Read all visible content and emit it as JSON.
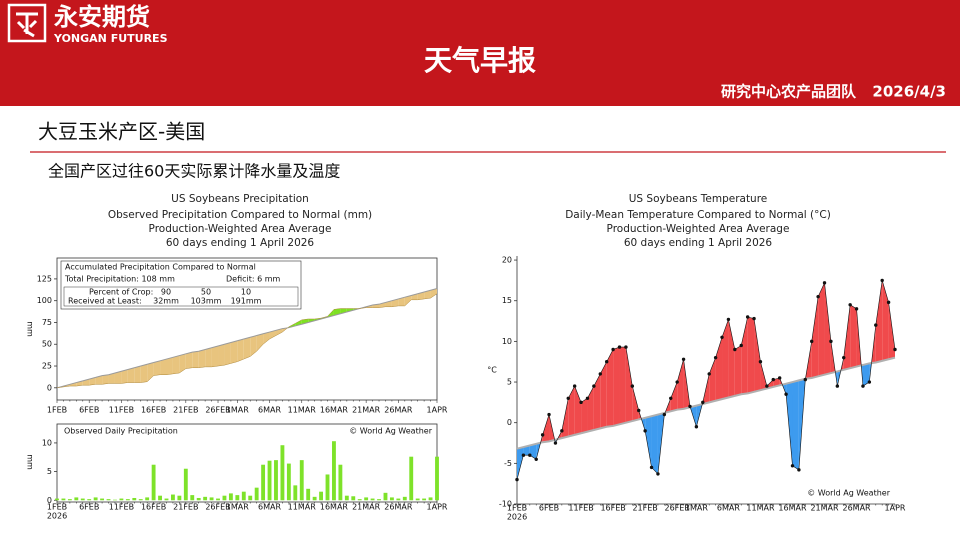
{
  "header": {
    "logo_cn": "永安期货",
    "logo_en": "YONGAN FUTURES",
    "title": "天气早报",
    "team": "研究中心农产品团队",
    "date": "2026/4/3"
  },
  "section": {
    "title": "大豆玉米产区-美国",
    "subtitle": "全国产区过往60天实际累计降水量及温度"
  },
  "chart_data": [
    {
      "type": "area",
      "title": "US Soybeans Precipitation",
      "subtitles": [
        "Observed Precipitation Compared to Normal (mm)",
        "Production-Weighted Area Average",
        "60 days ending 1 April 2026"
      ],
      "y_label": "mm",
      "annotations": {
        "box_title": "Accumulated Precipitation Compared to Normal",
        "total": "Total Precipitation:  108 mm",
        "deficit": "Deficit:  6 mm",
        "crop_label": "Percent of Crop:",
        "crop": [
          "90",
          "50",
          "10"
        ],
        "received_label": "Received at Least:",
        "received": [
          "32mm",
          "103mm",
          "191mm"
        ]
      },
      "categories": [
        "1FEB",
        null,
        null,
        null,
        null,
        "6FEB",
        null,
        null,
        null,
        null,
        "11FEB",
        null,
        null,
        null,
        null,
        "16FEB",
        null,
        null,
        null,
        null,
        "21FEB",
        null,
        null,
        null,
        null,
        "26FEB",
        null,
        null,
        "1MAR",
        null,
        null,
        null,
        null,
        "6MAR",
        null,
        null,
        null,
        null,
        "11MAR",
        null,
        null,
        null,
        null,
        "16MAR",
        null,
        null,
        null,
        null,
        "21MAR",
        null,
        null,
        null,
        null,
        "26MAR",
        null,
        null,
        null,
        null,
        null,
        "1APR"
      ],
      "series": [
        {
          "color": "#b08a3c",
          "values": [
            0,
            1,
            2,
            2,
            3,
            3,
            4,
            4,
            5,
            5,
            5,
            6,
            6,
            6,
            7,
            14,
            15,
            15,
            16,
            17,
            22,
            23,
            23,
            24,
            24,
            25,
            26,
            28,
            30,
            33,
            36,
            42,
            50,
            56,
            60,
            64,
            70,
            74,
            78,
            79,
            79,
            80,
            82,
            90,
            91,
            91,
            91,
            91,
            92,
            92,
            92,
            93,
            93,
            94,
            94,
            101,
            101,
            102,
            103,
            108
          ]
        },
        {
          "color": "#9a9a9a",
          "values": [
            0,
            2,
            4,
            6,
            8,
            10,
            12,
            14,
            15,
            17,
            19,
            21,
            23,
            25,
            27,
            29,
            31,
            33,
            35,
            37,
            39,
            41,
            42,
            44,
            46,
            48,
            50,
            52,
            54,
            56,
            58,
            60,
            62,
            64,
            66,
            68,
            69,
            71,
            73,
            75,
            77,
            79,
            81,
            83,
            85,
            87,
            89,
            91,
            93,
            95,
            96,
            98,
            100,
            102,
            104,
            106,
            108,
            110,
            112,
            114
          ]
        }
      ],
      "fill_below": "#e8c47e",
      "fill_above": "#7fe022",
      "ylim": [
        -14,
        149
      ],
      "yticks": [
        0,
        25,
        50,
        75,
        100,
        125
      ]
    },
    {
      "type": "bar",
      "title": "Observed Daily Precipitation",
      "credit": "© World Ag Weather",
      "y_label": "mm",
      "year_label": "2026",
      "categories": [
        "1FEB",
        null,
        null,
        null,
        null,
        "6FEB",
        null,
        null,
        null,
        null,
        "11FEB",
        null,
        null,
        null,
        null,
        "16FEB",
        null,
        null,
        null,
        null,
        "21FEB",
        null,
        null,
        null,
        null,
        "26FEB",
        null,
        null,
        "1MAR",
        null,
        null,
        null,
        null,
        "6MAR",
        null,
        null,
        null,
        null,
        "11MAR",
        null,
        null,
        null,
        null,
        "16MAR",
        null,
        null,
        null,
        null,
        "21MAR",
        null,
        null,
        null,
        null,
        "26MAR",
        null,
        null,
        null,
        null,
        null,
        "1APR"
      ],
      "values": [
        0.3,
        0.3,
        0.2,
        0.5,
        0.3,
        0.2,
        0.5,
        0.3,
        0.2,
        0.1,
        0.3,
        0.2,
        0.4,
        0.2,
        0.5,
        6.2,
        0.8,
        0.3,
        1.0,
        0.8,
        5.5,
        0.9,
        0.4,
        0.6,
        0.5,
        0.3,
        0.8,
        1.2,
        0.9,
        1.5,
        0.8,
        2.2,
        6.2,
        6.9,
        7.0,
        9.6,
        6.4,
        2.6,
        7.0,
        2.0,
        0.6,
        1.5,
        4.5,
        10.3,
        6.2,
        0.8,
        0.7,
        0.2,
        0.5,
        0.3,
        0.2,
        1.3,
        0.5,
        0.3,
        0.6,
        7.6,
        0.3,
        0.3,
        0.5,
        7.6
      ],
      "color": "#7ee22a",
      "ylim": [
        -0.3,
        13.3
      ],
      "yticks": [
        0,
        5,
        10
      ]
    },
    {
      "type": "line",
      "title": "US Soybeans Temperature",
      "subtitles": [
        "Daily-Mean Temperature Compared to Normal (°C)",
        "Production-Weighted Area Average",
        "60 days ending 1 April 2026"
      ],
      "credit": "© World Ag Weather",
      "y_label": "°C",
      "year_label": "2026",
      "categories": [
        "1FEB",
        null,
        null,
        null,
        null,
        "6FEB",
        null,
        null,
        null,
        null,
        "11FEB",
        null,
        null,
        null,
        null,
        "16FEB",
        null,
        null,
        null,
        null,
        "21FEB",
        null,
        null,
        null,
        null,
        "26FEB",
        null,
        null,
        "1MAR",
        null,
        null,
        null,
        null,
        "6MAR",
        null,
        null,
        null,
        null,
        "11MAR",
        null,
        null,
        null,
        null,
        "16MAR",
        null,
        null,
        null,
        null,
        "21MAR",
        null,
        null,
        null,
        null,
        "26MAR",
        null,
        null,
        null,
        null,
        null,
        "1APR"
      ],
      "series": [
        {
          "color": "#111111",
          "values": [
            -7,
            -4,
            -4,
            -4.5,
            -1.5,
            1,
            -2.5,
            -1,
            3,
            4.5,
            2.5,
            3,
            4.5,
            6,
            7.5,
            9,
            9.3,
            9.3,
            4.5,
            1.5,
            -1,
            -5.5,
            -6.3,
            1,
            3,
            5,
            7.8,
            2,
            -0.5,
            2.5,
            6,
            8,
            10.5,
            12.7,
            9,
            9.5,
            13,
            12.8,
            7.5,
            4.5,
            5.3,
            5.5,
            3.5,
            -5.3,
            -5.8,
            5.3,
            10,
            15.5,
            17.2,
            10,
            4.5,
            8,
            14.5,
            14,
            4.5,
            5,
            12,
            17.5,
            14.8,
            9
          ]
        },
        {
          "color": "#b0b0b0",
          "values": [
            -3.2,
            -3.0,
            -2.8,
            -2.6,
            -2.4,
            -2.3,
            -2.1,
            -1.9,
            -1.7,
            -1.5,
            -1.3,
            -1.1,
            -0.9,
            -0.7,
            -0.5,
            -0.4,
            -0.2,
            0.0,
            0.2,
            0.4,
            0.6,
            0.8,
            1.0,
            1.2,
            1.4,
            1.6,
            1.7,
            1.9,
            2.1,
            2.3,
            2.5,
            2.7,
            2.9,
            3.1,
            3.3,
            3.5,
            3.6,
            3.8,
            4.0,
            4.2,
            4.4,
            4.6,
            4.8,
            5.0,
            5.2,
            5.4,
            5.5,
            5.7,
            5.9,
            6.1,
            6.3,
            6.5,
            6.7,
            6.9,
            7.1,
            7.3,
            7.4,
            7.6,
            7.8,
            8.0
          ]
        }
      ],
      "fill_above": "#f04a4c",
      "fill_below": "#3d9bef",
      "ylim": [
        -10,
        20.5
      ],
      "yticks": [
        -10,
        -5,
        0,
        5,
        10,
        15,
        20
      ]
    }
  ]
}
